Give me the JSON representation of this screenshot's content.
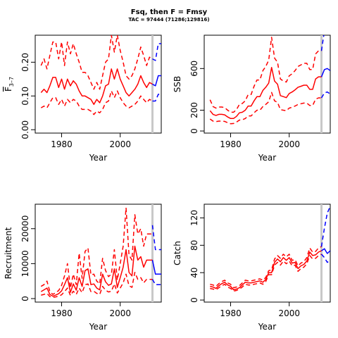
{
  "header": {
    "title": "Fsq, then F = Fmsy",
    "subtitle": "TAC = 97444 (71286;129816)"
  },
  "colors": {
    "historic": "#ff0000",
    "projection": "#0000ff",
    "vline": "#c8c8c8",
    "axis": "#000000"
  },
  "chart_data": [
    {
      "id": "fbar",
      "type": "line",
      "xlabel": "Year",
      "ylabel_main": "F",
      "ylabel_sub": "3–7",
      "xlim": [
        1971,
        2014
      ],
      "ylim": [
        -0.01,
        0.28
      ],
      "xticks": [
        1980,
        2000
      ],
      "yticks": [
        0,
        0.1,
        0.2
      ],
      "ytick_labels": [
        "0.00",
        "0.10",
        "0.20"
      ],
      "vline_x": 2011,
      "historic": {
        "x": [
          1973,
          1974,
          1975,
          1976,
          1977,
          1978,
          1979,
          1980,
          1981,
          1982,
          1983,
          1984,
          1985,
          1986,
          1987,
          1988,
          1989,
          1990,
          1991,
          1992,
          1993,
          1994,
          1995,
          1996,
          1997,
          1998,
          1999,
          2000,
          2001,
          2002,
          2003,
          2004,
          2005,
          2006,
          2007,
          2008,
          2009,
          2010,
          2011
        ],
        "median": [
          0.11,
          0.12,
          0.11,
          0.13,
          0.155,
          0.155,
          0.125,
          0.15,
          0.12,
          0.15,
          0.13,
          0.145,
          0.135,
          0.115,
          0.1,
          0.1,
          0.095,
          0.09,
          0.075,
          0.09,
          0.08,
          0.1,
          0.13,
          0.135,
          0.18,
          0.15,
          0.18,
          0.15,
          0.13,
          0.11,
          0.1,
          0.11,
          0.12,
          0.135,
          0.16,
          0.14,
          0.125,
          0.14,
          0.135
        ],
        "upper": [
          0.19,
          0.21,
          0.18,
          0.22,
          0.26,
          0.26,
          0.21,
          0.26,
          0.19,
          0.26,
          0.225,
          0.255,
          0.225,
          0.2,
          0.17,
          0.17,
          0.16,
          0.14,
          0.12,
          0.14,
          0.12,
          0.16,
          0.2,
          0.21,
          0.28,
          0.23,
          0.28,
          0.235,
          0.2,
          0.16,
          0.15,
          0.16,
          0.18,
          0.21,
          0.245,
          0.22,
          0.19,
          0.215,
          0.21
        ],
        "lower": [
          0.065,
          0.07,
          0.065,
          0.08,
          0.095,
          0.095,
          0.075,
          0.09,
          0.07,
          0.09,
          0.08,
          0.09,
          0.085,
          0.07,
          0.06,
          0.06,
          0.06,
          0.055,
          0.045,
          0.055,
          0.05,
          0.06,
          0.08,
          0.085,
          0.115,
          0.095,
          0.115,
          0.095,
          0.08,
          0.07,
          0.065,
          0.07,
          0.075,
          0.085,
          0.1,
          0.09,
          0.08,
          0.09,
          0.085
        ]
      },
      "projection": {
        "x": [
          2011,
          2012,
          2013,
          2014
        ],
        "median": [
          0.135,
          0.13,
          0.16,
          0.16
        ],
        "upper": [
          0.21,
          0.205,
          0.255,
          0.255
        ],
        "lower": [
          0.085,
          0.085,
          0.105,
          0.105
        ]
      }
    },
    {
      "id": "ssb",
      "type": "line",
      "xlabel": "Year",
      "ylabel": "SSB",
      "xlim": [
        1971,
        2014
      ],
      "ylim": [
        -20,
        920
      ],
      "xticks": [
        1980,
        2000
      ],
      "yticks": [
        0,
        200,
        600
      ],
      "ytick_labels": [
        "0",
        "200",
        "600"
      ],
      "vline_x": 2011,
      "historic": {
        "x": [
          1973,
          1974,
          1975,
          1976,
          1977,
          1978,
          1979,
          1980,
          1981,
          1982,
          1983,
          1984,
          1985,
          1986,
          1987,
          1988,
          1989,
          1990,
          1991,
          1992,
          1993,
          1994,
          1995,
          1996,
          1997,
          1998,
          1999,
          2000,
          2001,
          2002,
          2003,
          2004,
          2005,
          2006,
          2007,
          2008,
          2009,
          2010,
          2011
        ],
        "median": [
          195,
          160,
          150,
          160,
          160,
          155,
          135,
          120,
          120,
          140,
          175,
          180,
          200,
          240,
          240,
          290,
          330,
          330,
          390,
          420,
          460,
          610,
          480,
          450,
          340,
          330,
          320,
          360,
          375,
          395,
          420,
          430,
          440,
          440,
          400,
          400,
          500,
          520,
          520
        ],
        "upper": [
          300,
          235,
          220,
          230,
          230,
          225,
          200,
          180,
          180,
          205,
          255,
          265,
          290,
          350,
          350,
          430,
          490,
          490,
          580,
          620,
          680,
          900,
          700,
          660,
          500,
          480,
          470,
          530,
          550,
          580,
          620,
          635,
          650,
          650,
          590,
          590,
          740,
          770,
          770
        ],
        "lower": [
          115,
          95,
          90,
          95,
          95,
          92,
          80,
          70,
          72,
          85,
          105,
          108,
          120,
          145,
          145,
          175,
          200,
          200,
          235,
          255,
          280,
          370,
          290,
          275,
          205,
          200,
          195,
          220,
          228,
          240,
          255,
          262,
          268,
          268,
          245,
          245,
          305,
          318,
          318
        ]
      },
      "projection": {
        "x": [
          2011,
          2012,
          2013,
          2014
        ],
        "median": [
          520,
          590,
          600,
          580
        ],
        "upper": [
          770,
          960,
          1000,
          970
        ],
        "lower": [
          318,
          365,
          375,
          355
        ]
      }
    },
    {
      "id": "recruitment",
      "type": "line",
      "xlabel": "Year",
      "ylabel": "Recruitment",
      "xlim": [
        1971,
        2014
      ],
      "ylim": [
        -1000,
        27000
      ],
      "xticks": [
        1980,
        2000
      ],
      "yticks": [
        0,
        10000,
        20000
      ],
      "ytick_labels": [
        "0",
        "10000",
        "20000"
      ],
      "vline_x": 2011,
      "historic": {
        "x": [
          1973,
          1974,
          1975,
          1976,
          1977,
          1978,
          1979,
          1980,
          1981,
          1982,
          1983,
          1984,
          1985,
          1986,
          1987,
          1988,
          1989,
          1990,
          1991,
          1992,
          1993,
          1994,
          1995,
          1996,
          1997,
          1998,
          1999,
          2000,
          2001,
          2002,
          2003,
          2004,
          2005,
          2006,
          2007,
          2008,
          2009,
          2010,
          2011
        ],
        "median": [
          2000,
          2500,
          3000,
          1200,
          700,
          1000,
          1400,
          2200,
          4000,
          6000,
          1800,
          4200,
          2400,
          6000,
          3500,
          8000,
          8500,
          4000,
          4200,
          3000,
          2500,
          7000,
          4800,
          3800,
          4200,
          8500,
          3200,
          6000,
          9000,
          14000,
          7500,
          6500,
          15000,
          11000,
          12000,
          9000,
          11000,
          11000,
          11000
        ],
        "upper": [
          3500,
          4000,
          5000,
          2000,
          1200,
          1700,
          2300,
          3800,
          6500,
          10000,
          3000,
          7000,
          4000,
          13000,
          5800,
          13500,
          14500,
          6800,
          7000,
          5000,
          4200,
          11500,
          8000,
          6300,
          7000,
          14000,
          5300,
          10000,
          15000,
          26000,
          12500,
          11000,
          24000,
          18500,
          20000,
          15000,
          18500,
          18500,
          18500
        ],
        "lower": [
          1000,
          1200,
          1500,
          600,
          350,
          500,
          700,
          1100,
          2000,
          3000,
          900,
          2100,
          1200,
          3000,
          1700,
          4000,
          4200,
          2000,
          2100,
          1500,
          1200,
          3500,
          2400,
          1900,
          2100,
          4200,
          1600,
          3000,
          4500,
          7000,
          3700,
          3200,
          7500,
          5500,
          6000,
          4500,
          5500,
          5500,
          5500
        ]
      },
      "projection": {
        "x": [
          2011,
          2012,
          2013,
          2014
        ],
        "median": [
          11000,
          7000,
          7000,
          7000
        ],
        "upper": [
          21000,
          14000,
          14000,
          14000
        ],
        "lower": [
          5500,
          4000,
          4000,
          4000
        ]
      }
    },
    {
      "id": "catch",
      "type": "line",
      "xlabel": "Year",
      "ylabel": "Catch",
      "xlim": [
        1971,
        2014
      ],
      "ylim": [
        -3,
        140
      ],
      "xticks": [
        1980,
        2000
      ],
      "yticks": [
        0,
        40,
        80,
        120
      ],
      "ytick_labels": [
        "0",
        "40",
        "80",
        "120"
      ],
      "vline_x": 2011,
      "historic": {
        "x": [
          1973,
          1974,
          1975,
          1976,
          1977,
          1978,
          1979,
          1980,
          1981,
          1982,
          1983,
          1984,
          1985,
          1986,
          1987,
          1988,
          1989,
          1990,
          1991,
          1992,
          1993,
          1994,
          1995,
          1996,
          1997,
          1998,
          1999,
          2000,
          2001,
          2002,
          2003,
          2004,
          2005,
          2006,
          2007,
          2008,
          2009,
          2010,
          2011
        ],
        "median": [
          20,
          19,
          17,
          21,
          24,
          26,
          22,
          20,
          15,
          16,
          18,
          22,
          26,
          25,
          25,
          26,
          27,
          28,
          26,
          30,
          40,
          40,
          55,
          60,
          56,
          62,
          58,
          62,
          54,
          55,
          46,
          50,
          52,
          57,
          70,
          65,
          66,
          70,
          72
        ],
        "upper": [
          23,
          22,
          20,
          24,
          27,
          29,
          25,
          23,
          18,
          19,
          21,
          25,
          29,
          28,
          28,
          29,
          30,
          31,
          29,
          33,
          43,
          44,
          60,
          65,
          61,
          67,
          63,
          67,
          58,
          59,
          50,
          54,
          56,
          62,
          76,
          70,
          71,
          76,
          78
        ],
        "lower": [
          17,
          16,
          15,
          18,
          21,
          23,
          19,
          17,
          13,
          14,
          16,
          19,
          23,
          22,
          22,
          23,
          24,
          25,
          23,
          27,
          37,
          37,
          51,
          55,
          51,
          57,
          53,
          57,
          50,
          51,
          42,
          46,
          48,
          53,
          65,
          60,
          61,
          65,
          67
        ]
      },
      "projection": {
        "x": [
          2011,
          2012,
          2013,
          2014
        ],
        "median": [
          72,
          75,
          68,
          72
        ],
        "upper": [
          78,
          105,
          127,
          137
        ],
        "lower": [
          67,
          62,
          55,
          58
        ]
      }
    }
  ]
}
